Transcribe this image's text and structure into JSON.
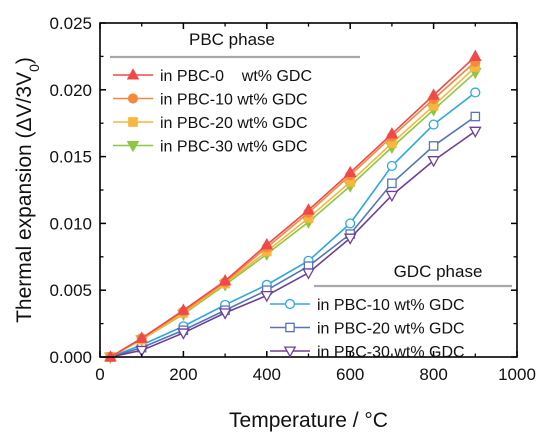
{
  "chart_data": {
    "type": "line",
    "xlabel": "Temperature / °C",
    "ylabel_main": "Thermal expansion (ΔV/3V",
    "ylabel_sub": "0",
    "ylabel_close": ")",
    "xlim": [
      0,
      1000
    ],
    "ylim": [
      0,
      0.025
    ],
    "x_ticks": [
      0,
      200,
      400,
      600,
      800,
      1000
    ],
    "x_tick_labels": [
      "0",
      "200",
      "400",
      "600",
      "800",
      "1000"
    ],
    "y_ticks": [
      0,
      0.005,
      0.01,
      0.015,
      0.02,
      0.025
    ],
    "y_tick_labels": [
      "0.000",
      "0.005",
      "0.010",
      "0.015",
      "0.020",
      "0.025"
    ],
    "grid": false,
    "x": [
      25,
      100,
      200,
      300,
      400,
      500,
      600,
      700,
      800,
      900
    ],
    "legend_groups": [
      {
        "heading": "PBC phase",
        "placement": "top-left",
        "series_indices": [
          0,
          1,
          2,
          3
        ]
      },
      {
        "heading": "GDC phase",
        "placement": "bottom-right",
        "series_indices": [
          4,
          5,
          6
        ]
      }
    ],
    "series": [
      {
        "name": "in PBC-0    wt% GDC",
        "color": "#f0484b",
        "marker": "triangle-up",
        "filled": true,
        "values": [
          0.0,
          0.0014,
          0.0035,
          0.0057,
          0.0084,
          0.011,
          0.0138,
          0.0167,
          0.0196,
          0.0225
        ]
      },
      {
        "name": "in PBC-10 wt% GDC",
        "color": "#f58a3c",
        "marker": "circle",
        "filled": true,
        "values": [
          0.0,
          0.0014,
          0.0034,
          0.0056,
          0.0082,
          0.0108,
          0.0136,
          0.0165,
          0.0193,
          0.0221
        ]
      },
      {
        "name": "in PBC-20 wt% GDC",
        "color": "#f6b73c",
        "marker": "square",
        "filled": true,
        "values": [
          0.0,
          0.0013,
          0.0033,
          0.0055,
          0.0079,
          0.0104,
          0.0131,
          0.016,
          0.0188,
          0.0217
        ]
      },
      {
        "name": "in PBC-30 wt% GDC",
        "color": "#8ec640",
        "marker": "triangle-down",
        "filled": true,
        "values": [
          0.0,
          0.0013,
          0.0032,
          0.0054,
          0.0077,
          0.0101,
          0.0128,
          0.0157,
          0.0185,
          0.0213
        ]
      },
      {
        "name": "in PBC-10 wt% GDC",
        "color": "#2ea8df",
        "marker": "circle",
        "filled": false,
        "values": [
          0.0,
          0.0009,
          0.0023,
          0.0039,
          0.0054,
          0.0072,
          0.01,
          0.0143,
          0.0174,
          0.0198
        ]
      },
      {
        "name": "in PBC-20 wt% GDC",
        "color": "#5575b8",
        "marker": "square",
        "filled": false,
        "values": [
          0.0,
          0.0007,
          0.002,
          0.0035,
          0.005,
          0.0068,
          0.0092,
          0.013,
          0.0158,
          0.018
        ]
      },
      {
        "name": "in PBC-30 wt% GDC",
        "color": "#6f3f9a",
        "marker": "triangle-down",
        "filled": false,
        "values": [
          0.0,
          0.0005,
          0.0018,
          0.0033,
          0.0046,
          0.0063,
          0.0089,
          0.0121,
          0.0147,
          0.0169
        ]
      }
    ]
  }
}
